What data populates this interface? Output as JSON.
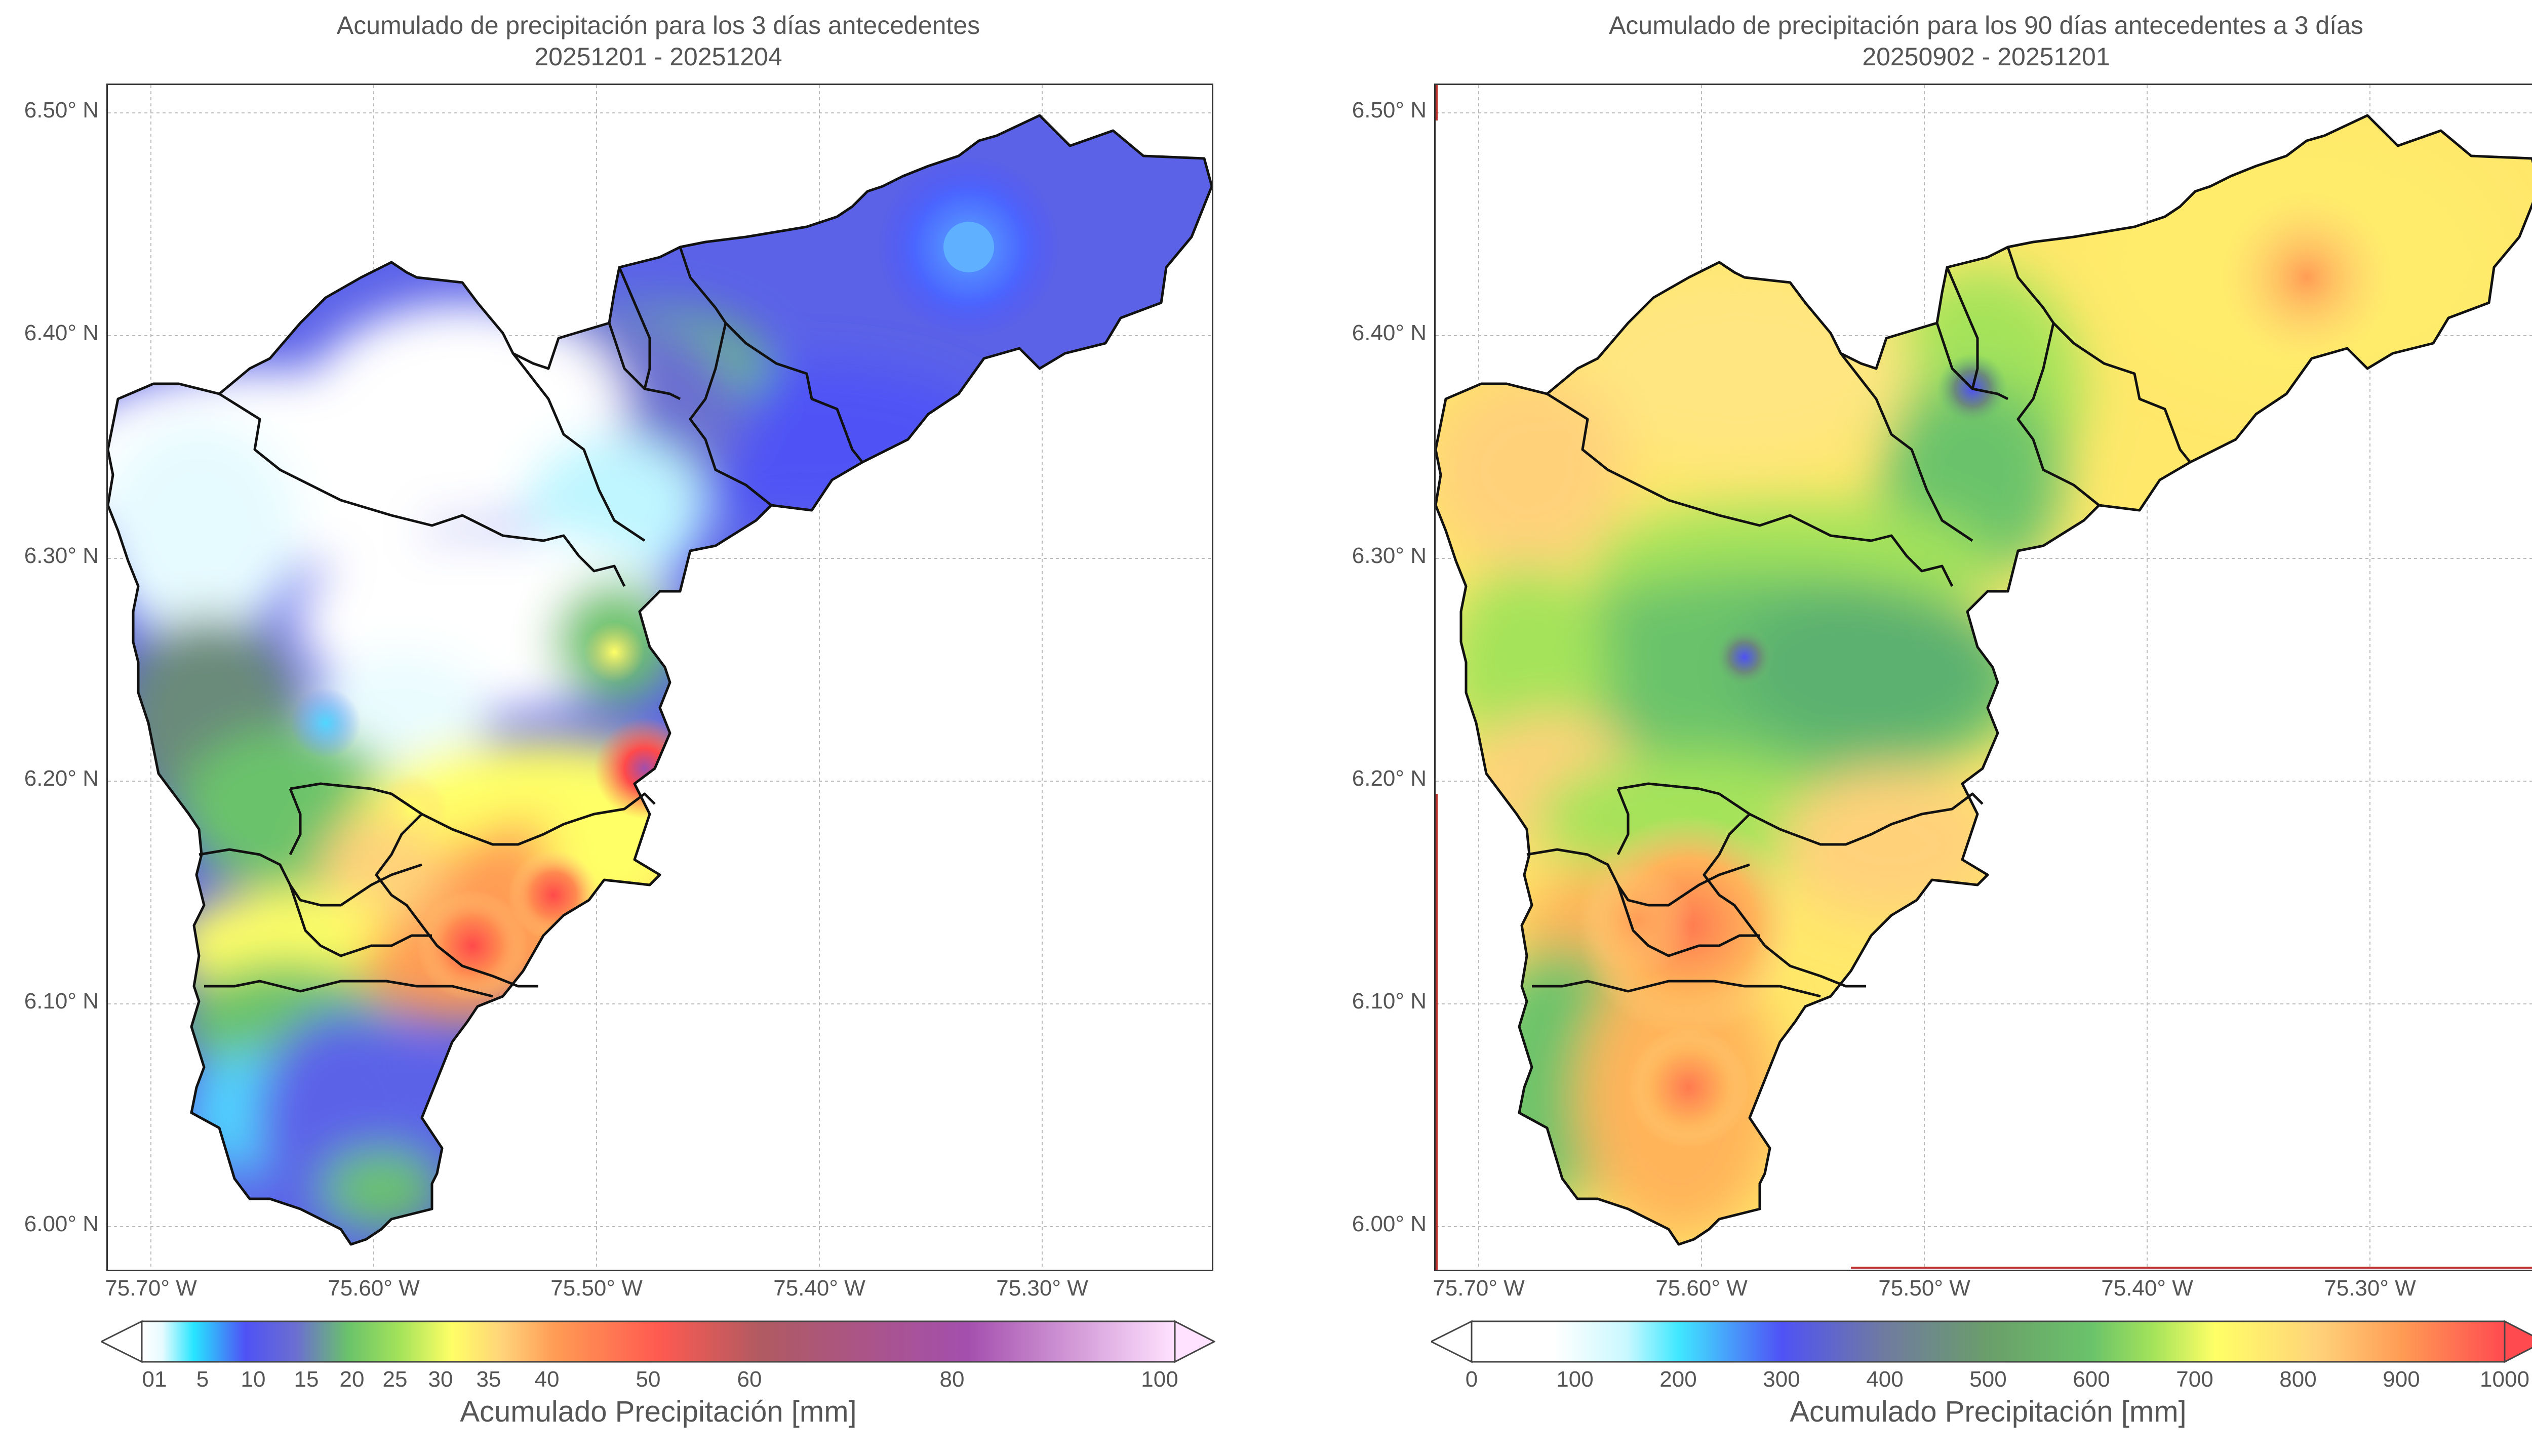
{
  "panels": [
    {
      "title_line1": "Acumulado de precipitación para los 3 días antecedentes",
      "title_line2": "20251201 - 20251204",
      "yticks": [
        "6.50° N",
        "6.40° N",
        "6.30° N",
        "6.20° N",
        "6.10° N",
        "6.00° N"
      ],
      "xticks": [
        "75.70° W",
        "75.60° W",
        "75.50° W",
        "75.40° W",
        "75.30° W"
      ],
      "colorbar": {
        "label": "Acumulado Precipitación [mm]",
        "ticks": [
          "01",
          "5",
          "10",
          "15",
          "20",
          "25",
          "30",
          "35",
          "40",
          "50",
          "60",
          "80",
          "100"
        ],
        "tick_values": [
          0,
          1,
          5,
          10,
          15,
          20,
          25,
          30,
          35,
          40,
          50,
          60,
          80,
          100
        ],
        "colors": [
          "#ffffff",
          "#e6fbff",
          "#27e6ff",
          "#4f52f5",
          "#6b6fd0",
          "#6ac36a",
          "#a4e35a",
          "#ffff66",
          "#ffd27a",
          "#ff9c54",
          "#ff5a50",
          "#b05a62",
          "#a44fae",
          "#ffe2ff"
        ]
      }
    },
    {
      "title_line1": "Acumulado de precipitación para los 90 días antecedentes a 3 días",
      "title_line2": "20250902 - 20251201",
      "yticks": [
        "6.50° N",
        "6.40° N",
        "6.30° N",
        "6.20° N",
        "6.10° N",
        "6.00° N"
      ],
      "xticks": [
        "75.70° W",
        "75.60° W",
        "75.50° W",
        "75.40° W",
        "75.30° W"
      ],
      "colorbar": {
        "label": "Acumulado Precipitación [mm]",
        "ticks": [
          "0",
          "100",
          "200",
          "300",
          "400",
          "500",
          "600",
          "700",
          "800",
          "900",
          "1000"
        ],
        "colors": [
          "#ffffff",
          "#ffffff",
          "#40e8ff",
          "#4f52f5",
          "#707ba0",
          "#6ac36a",
          "#a4e35a",
          "#ffff66",
          "#ffd27a",
          "#ff9c54",
          "#ff4a50"
        ]
      }
    }
  ]
}
